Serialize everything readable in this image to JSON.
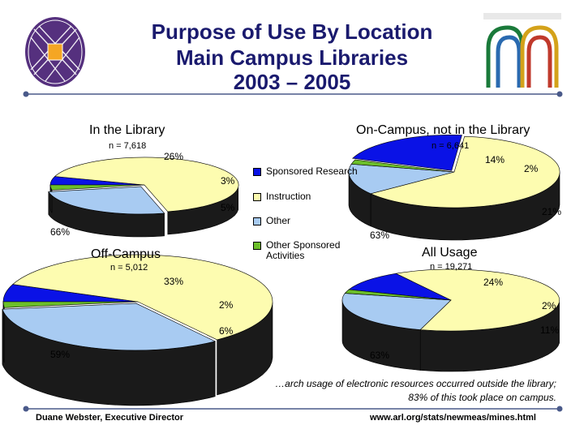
{
  "title_lines": [
    "Purpose of Use By Location",
    "Main Campus Libraries",
    "2003 – 2005"
  ],
  "legend": [
    {
      "label": "Sponsored Research",
      "color": "#0a12e6"
    },
    {
      "label": "Instruction",
      "color": "#fdfcb0"
    },
    {
      "label": "Other",
      "color": "#a8cbf2"
    },
    {
      "label": "Other Sponsored Activities",
      "color": "#6cbf2a"
    }
  ],
  "chart_data": [
    {
      "type": "pie",
      "title": "In the Library",
      "n": "n = 7,618",
      "categories": [
        "Sponsored Research",
        "Instruction",
        "Other",
        "Other Sponsored Activities"
      ],
      "values": [
        5,
        66,
        26,
        3
      ],
      "labels": [
        "5%",
        "66%",
        "26%",
        "3%"
      ]
    },
    {
      "type": "pie",
      "title": "On-Campus, not in the Library",
      "n": "n = 6,641",
      "categories": [
        "Sponsored Research",
        "Instruction",
        "Other",
        "Other Sponsored Activities"
      ],
      "values": [
        21,
        63,
        14,
        2
      ],
      "labels": [
        "21%",
        "63%",
        "14%",
        "2%"
      ]
    },
    {
      "type": "pie",
      "title": "Off-Campus",
      "n": "n = 5,012",
      "categories": [
        "Sponsored Research",
        "Instruction",
        "Other",
        "Other Sponsored Activities"
      ],
      "values": [
        6,
        59,
        33,
        2
      ],
      "labels": [
        "6%",
        "59%",
        "33%",
        "2%"
      ]
    },
    {
      "type": "pie",
      "title": "All Usage",
      "n": "n = 19,271",
      "categories": [
        "Sponsored Research",
        "Instruction",
        "Other",
        "Other Sponsored Activities"
      ],
      "values": [
        11,
        63,
        24,
        2
      ],
      "labels": [
        "11%",
        "63%",
        "24%",
        "2%"
      ]
    }
  ],
  "footnote_lines": [
    "…arch usage of electronic resources occurred outside the library;",
    "83% of this took place on campus."
  ],
  "footer": {
    "left": "Duane Webster, Executive Director",
    "right": "www.arl.org/stats/newmeas/mines.html"
  },
  "colors": {
    "title": "#1a1a6e",
    "rule": "#4a5a8a",
    "side": "#1a1a1a"
  }
}
